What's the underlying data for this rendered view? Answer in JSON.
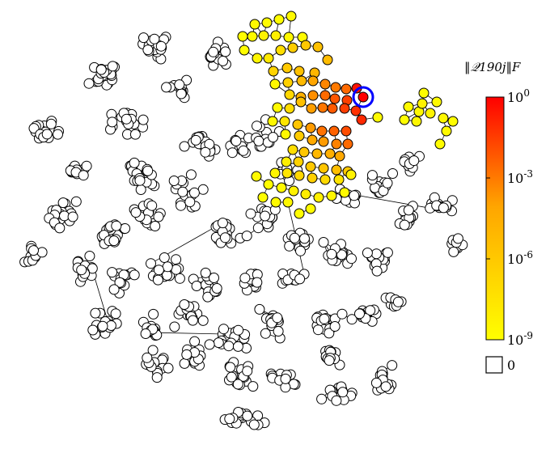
{
  "chart_data": {
    "type": "scatter",
    "title": "",
    "xlabel": "",
    "ylabel": "",
    "grid": false,
    "colorbar": {
      "title": "‖𝒬190j‖F",
      "scale": "log",
      "range": [
        1e-09,
        1
      ],
      "ticks": [
        {
          "value": 1,
          "label": "10^0"
        },
        {
          "value": 0.001,
          "label": "10^-3"
        },
        {
          "value": 1e-06,
          "label": "10^-6"
        },
        {
          "value": 1e-09,
          "label": "10^-9"
        }
      ],
      "colormap_stops": [
        "#ffff00",
        "#ffa500",
        "#ff0000"
      ],
      "zero_swatch": {
        "label": "0",
        "color": "#ffffff"
      }
    },
    "highlighted_node": 190,
    "highlight_color": "#0000ff",
    "node_count_approx": 800,
    "zero_node_color": "#ffffff",
    "edge_color": "#000000"
  }
}
